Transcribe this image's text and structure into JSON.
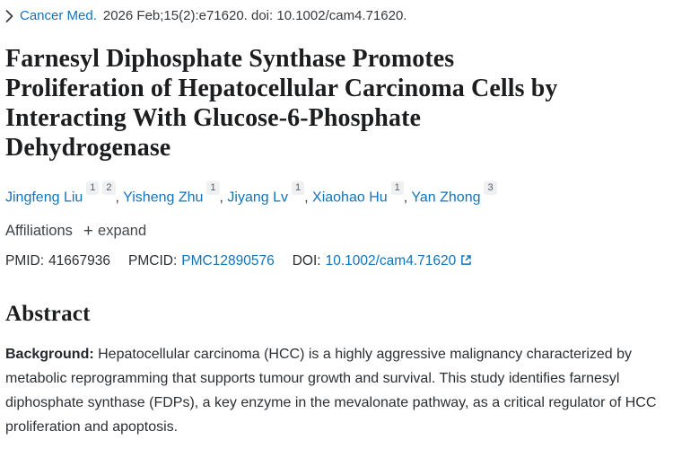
{
  "colors": {
    "link_blue": "#1274bc",
    "text_dark": "#24282c",
    "badge_background": "#eef0f1"
  },
  "citation": {
    "chevron_icon": "chevron-right-icon",
    "journal": "Cancer Med.",
    "details": "2026 Feb;15(2):e71620. doi: 10.1002/cam4.71620."
  },
  "title": "Farnesyl Diphosphate Synthase Promotes\nProliferation of Hepatocellular Carcinoma Cells by\nInteracting With Glucose-6-Phosphate\nDehydrogenase",
  "authors": [
    {
      "name": "Jingfeng Liu",
      "sups": [
        "1",
        "2"
      ]
    },
    {
      "name": "Yisheng Zhu",
      "sups": [
        "1"
      ]
    },
    {
      "name": "Jiyang Lv",
      "sups": [
        "1"
      ]
    },
    {
      "name": "Xiaohao Hu",
      "sups": [
        "1"
      ]
    },
    {
      "name": "Yan Zhong",
      "sups": [
        "3"
      ]
    }
  ],
  "author_separator": ",",
  "affiliations": {
    "label": "Affiliations",
    "expand_icon": "+",
    "expand_label": "expand"
  },
  "identifiers": {
    "pmid_label": "PMID:",
    "pmid": "41667936",
    "pmcid_label": "PMCID:",
    "pmcid": "PMC12890576",
    "doi_label": "DOI:",
    "doi": "10.1002/cam4.71620",
    "doi_external_icon": "external-link-icon"
  },
  "abstract": {
    "heading": "Abstract",
    "background_label": "Background:",
    "background_text": "Hepatocellular carcinoma (HCC) is a highly aggressive malignancy characterized by\nmetabolic reprogramming that supports tumour growth and survival. This study identifies farnesyl\ndiphosphate synthase (FDPs), a key enzyme in the mevalonate pathway, as a critical regulator of HCC\nproliferation and apoptosis."
  }
}
